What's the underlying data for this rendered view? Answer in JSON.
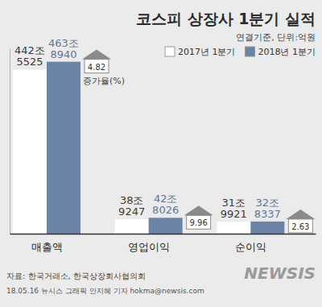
{
  "chart_data": {
    "type": "bar",
    "title": "코스피 상장사 1분기 실적",
    "subtitle": "연결기준, 단위:억원",
    "categories": [
      "매출액",
      "영업이익",
      "순이익"
    ],
    "series": [
      {
        "name": "2017년 1분기",
        "color": "#ffffff",
        "values": [
          4425525,
          389247,
          319921
        ],
        "value_labels": [
          "442조 5525",
          "38조 9247",
          "31조 9921"
        ]
      },
      {
        "name": "2018년 1분기",
        "color": "#6c83a8",
        "values": [
          4638940,
          428026,
          328337
        ],
        "value_labels": [
          "463조 8940",
          "42조 8026",
          "32조 8337"
        ]
      }
    ],
    "growth_rate": {
      "label": "증가율(%)",
      "values": [
        4.82,
        9.96,
        2.63
      ]
    },
    "ylim": [
      0,
      5000000
    ],
    "tick_labels": false,
    "data_labels": true,
    "legend": "top-right",
    "source": "자료: 한국거래소, 한국상장회사협의회",
    "credit": "18.05.16 뉴시스 그래픽 안지혜 기자 hokma@newsis.com",
    "watermark": "NEWSIS"
  }
}
